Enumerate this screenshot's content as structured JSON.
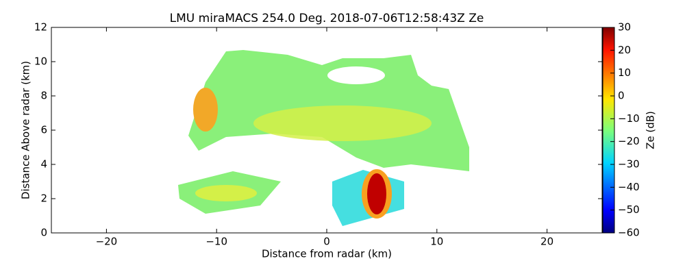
{
  "chart_data": {
    "type": "heatmap",
    "title": "LMU miraMACS 254.0 Deg. 2018-07-06T12:58:43Z  Ze",
    "xlabel": "Distance from radar (km)",
    "ylabel": "Distance Above radar  (km)",
    "xlim": [
      -25,
      25
    ],
    "xticks": [
      {
        "value": -20,
        "label": "−20"
      },
      {
        "value": -10,
        "label": "−10"
      },
      0,
      10,
      20
    ],
    "ylim": [
      0,
      12
    ],
    "yticks": [
      0,
      2,
      4,
      6,
      8,
      10,
      12
    ],
    "colorbar": {
      "label": "Ze (dB)",
      "lim": [
        -60,
        30
      ],
      "colormap": "jet",
      "ticks": [
        {
          "value": -60,
          "label": "−60"
        },
        {
          "value": -50,
          "label": "−50"
        },
        {
          "value": -40,
          "label": "−40"
        },
        {
          "value": -30,
          "label": "−30"
        },
        {
          "value": -20,
          "label": "−20"
        },
        {
          "value": -10,
          "label": "−10"
        },
        0,
        10,
        20,
        30
      ]
    }
  }
}
